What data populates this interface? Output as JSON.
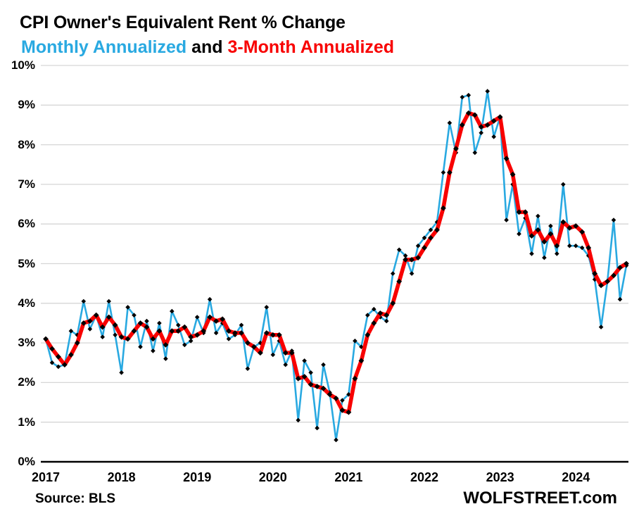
{
  "header": {
    "title": "CPI Owner's Equivalent Rent % Change",
    "subtitle_blue": "Monthly Annualized",
    "subtitle_and": " and ",
    "subtitle_red": "3-Month Annualized"
  },
  "footer": {
    "source": "Source: BLS",
    "brand": "WOLFSTREET.com"
  },
  "colors": {
    "blue": "#29a9e1",
    "red": "#f80000",
    "grid": "#d6d6d6",
    "axis": "#000000",
    "marker": "#000000"
  },
  "chart_data": {
    "type": "line",
    "title": "CPI Owner's Equivalent Rent % Change",
    "xlabel": "",
    "ylabel": "",
    "x_start": "2017-01",
    "x_end": "2024-09",
    "frequency": "monthly",
    "ylim": [
      0,
      10
    ],
    "grid": "horizontal",
    "legend_position": "subtitle",
    "yticks": [
      "0%",
      "1%",
      "2%",
      "3%",
      "4%",
      "5%",
      "6%",
      "7%",
      "8%",
      "9%",
      "10%"
    ],
    "xticks": [
      "2017",
      "2018",
      "2019",
      "2020",
      "2021",
      "2022",
      "2023",
      "2024"
    ],
    "series": [
      {
        "name": "Monthly Annualized",
        "color": "#29a9e1",
        "marker": "black-diamond",
        "values": [
          3.1,
          2.5,
          2.4,
          2.45,
          3.3,
          3.2,
          4.05,
          3.35,
          3.7,
          3.15,
          4.05,
          3.2,
          2.25,
          3.9,
          3.7,
          2.9,
          3.55,
          2.8,
          3.5,
          2.6,
          3.8,
          3.45,
          2.95,
          3.05,
          3.65,
          3.25,
          4.1,
          3.25,
          3.5,
          3.1,
          3.2,
          3.45,
          2.35,
          2.9,
          3.0,
          3.9,
          2.7,
          3.05,
          2.45,
          2.8,
          1.05,
          2.55,
          2.25,
          0.85,
          2.45,
          1.75,
          0.55,
          1.55,
          1.7,
          3.05,
          2.9,
          3.7,
          3.85,
          3.65,
          3.55,
          4.75,
          5.35,
          5.2,
          4.75,
          5.45,
          5.65,
          5.85,
          6.05,
          7.3,
          8.55,
          7.8,
          9.2,
          9.25,
          7.8,
          8.3,
          9.35,
          8.2,
          8.7,
          6.1,
          7.0,
          5.75,
          6.15,
          5.25,
          6.2,
          5.15,
          5.95,
          5.25,
          7.0,
          5.45,
          5.45,
          5.4,
          5.2,
          4.6,
          3.4,
          4.55,
          6.1,
          4.1,
          4.95
        ]
      },
      {
        "name": "3-Month Annualized",
        "color": "#f80000",
        "marker": "black-diamond",
        "values": [
          3.1,
          2.85,
          2.65,
          2.45,
          2.7,
          3.0,
          3.5,
          3.55,
          3.7,
          3.4,
          3.65,
          3.45,
          3.15,
          3.1,
          3.3,
          3.5,
          3.4,
          3.1,
          3.3,
          2.95,
          3.3,
          3.3,
          3.4,
          3.15,
          3.2,
          3.3,
          3.65,
          3.55,
          3.6,
          3.3,
          3.25,
          3.25,
          3.0,
          2.9,
          2.75,
          3.25,
          3.2,
          3.2,
          2.75,
          2.75,
          2.1,
          2.15,
          1.95,
          1.9,
          1.85,
          1.7,
          1.6,
          1.3,
          1.25,
          2.1,
          2.55,
          3.2,
          3.5,
          3.75,
          3.7,
          4.0,
          4.55,
          5.1,
          5.1,
          5.15,
          5.4,
          5.65,
          5.85,
          6.4,
          7.3,
          7.9,
          8.5,
          8.8,
          8.75,
          8.45,
          8.5,
          8.6,
          8.7,
          7.65,
          7.25,
          6.3,
          6.3,
          5.7,
          5.85,
          5.55,
          5.75,
          5.45,
          6.05,
          5.9,
          5.95,
          5.8,
          5.4,
          4.75,
          4.45,
          4.55,
          4.7,
          4.9,
          5.0
        ]
      }
    ]
  }
}
